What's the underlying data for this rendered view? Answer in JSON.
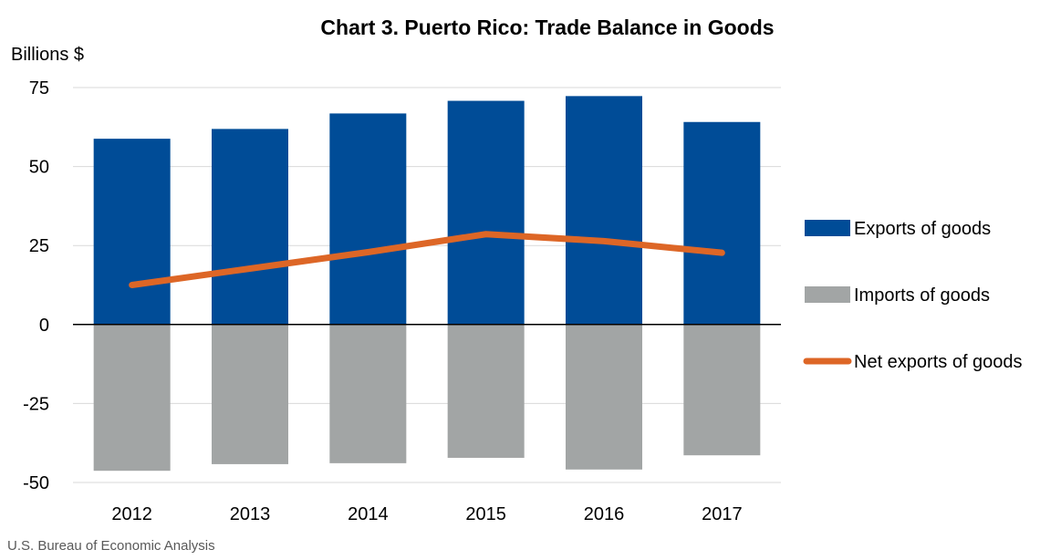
{
  "chart_data": {
    "type": "bar",
    "title": "Chart 3. Puerto Rico: Trade Balance in Goods",
    "ylabel": "Billions $",
    "xlabel": "",
    "categories": [
      "2012",
      "2013",
      "2014",
      "2015",
      "2016",
      "2017"
    ],
    "ylim": [
      -50,
      75
    ],
    "yticks": [
      75,
      50,
      25,
      0,
      -25,
      -50
    ],
    "grid": true,
    "legend_position": "right",
    "series": [
      {
        "name": "Exports of goods",
        "kind": "bar",
        "color": "#004C97",
        "values": [
          58.8,
          61.9,
          66.8,
          70.8,
          72.3,
          64.1
        ]
      },
      {
        "name": "Imports of goods",
        "kind": "bar",
        "color": "#A2A5A5",
        "values": [
          -46.3,
          -44.2,
          -43.9,
          -42.2,
          -45.9,
          -41.4
        ]
      },
      {
        "name": "Net exports of goods",
        "kind": "line",
        "color": "#DD6626",
        "values": [
          12.5,
          17.7,
          22.9,
          28.6,
          26.4,
          22.7
        ]
      }
    ],
    "source": "U.S. Bureau of Economic Analysis"
  }
}
